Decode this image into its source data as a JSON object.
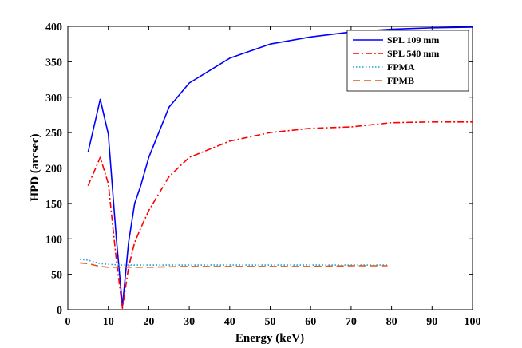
{
  "chart_data": {
    "type": "line",
    "title": "",
    "xlabel": "Energy (keV)",
    "ylabel": "HPD (arcsec)",
    "xlim": [
      0,
      100
    ],
    "ylim": [
      0,
      400
    ],
    "xticks": [
      0,
      10,
      20,
      30,
      40,
      50,
      60,
      70,
      80,
      90,
      100
    ],
    "yticks": [
      0,
      50,
      100,
      150,
      200,
      250,
      300,
      350,
      400
    ],
    "grid": false,
    "legend_position": "top-right",
    "series": [
      {
        "name": "SPL 109 mm",
        "color": "#0000ff",
        "style": "solid",
        "x": [
          5,
          8,
          10,
          12,
          13.5,
          15,
          16.5,
          18,
          20,
          25,
          30,
          40,
          50,
          60,
          70,
          80,
          90,
          100
        ],
        "y": [
          222,
          297,
          248,
          100,
          5,
          95,
          150,
          175,
          215,
          286,
          320,
          355,
          375,
          385,
          392,
          396,
          398,
          399
        ]
      },
      {
        "name": "SPL 540 mm",
        "color": "#ff0000",
        "style": "dashdot",
        "x": [
          5,
          8,
          10,
          12,
          13.5,
          15,
          16.5,
          18,
          20,
          25,
          30,
          40,
          50,
          60,
          70,
          80,
          90,
          100
        ],
        "y": [
          175,
          215,
          178,
          70,
          2,
          60,
          95,
          115,
          140,
          188,
          215,
          238,
          250,
          256,
          258,
          264,
          265,
          265
        ]
      },
      {
        "name": "FPMA",
        "color": "#1fa0d8",
        "style": "dotted",
        "x": [
          3,
          5,
          8,
          10,
          13,
          15,
          20,
          30,
          40,
          50,
          60,
          70,
          79
        ],
        "y": [
          71,
          70,
          65,
          64,
          63,
          63,
          63,
          63,
          63,
          63,
          63,
          63,
          63
        ]
      },
      {
        "name": "FPMB",
        "color": "#e0571f",
        "style": "dashed",
        "x": [
          3,
          5,
          8,
          10,
          13,
          15,
          20,
          30,
          40,
          50,
          60,
          70,
          79
        ],
        "y": [
          66,
          65,
          61,
          60,
          60,
          60,
          60,
          61,
          61,
          61,
          61,
          62,
          62
        ]
      }
    ]
  }
}
